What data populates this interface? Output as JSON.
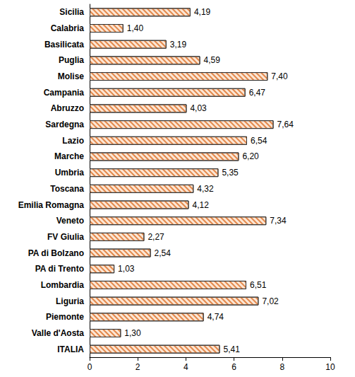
{
  "chart_data": {
    "type": "bar",
    "orientation": "horizontal",
    "categories": [
      "Sicilia",
      "Calabria",
      "Basilicata",
      "Puglia",
      "Molise",
      "Campania",
      "Abruzzo",
      "Sardegna",
      "Lazio",
      "Marche",
      "Umbria",
      "Toscana",
      "Emilia Romagna",
      "Veneto",
      "FV Giulia",
      "PA di Bolzano",
      "PA di Trento",
      "Lombardia",
      "Liguria",
      "Piemonte",
      "Valle d'Aosta",
      "ITALIA"
    ],
    "values": [
      4.19,
      1.4,
      3.19,
      4.59,
      7.4,
      6.47,
      4.03,
      7.64,
      6.54,
      6.2,
      5.35,
      4.32,
      4.12,
      7.34,
      2.27,
      2.54,
      1.03,
      6.51,
      7.02,
      4.74,
      1.3,
      5.41
    ],
    "value_labels": [
      "4,19",
      "1,40",
      "3,19",
      "4,59",
      "7,40",
      "6,47",
      "4,03",
      "7,64",
      "6,54",
      "6,20",
      "5,35",
      "4,32",
      "4,12",
      "7,34",
      "2,27",
      "2,54",
      "1,03",
      "6,51",
      "7,02",
      "4,74",
      "1,30",
      "5,41"
    ],
    "color": "#e3874a",
    "xlim": [
      0,
      10
    ],
    "xticks": [
      0,
      2,
      4,
      6,
      8,
      10
    ],
    "grid": false,
    "data_labels": true
  }
}
